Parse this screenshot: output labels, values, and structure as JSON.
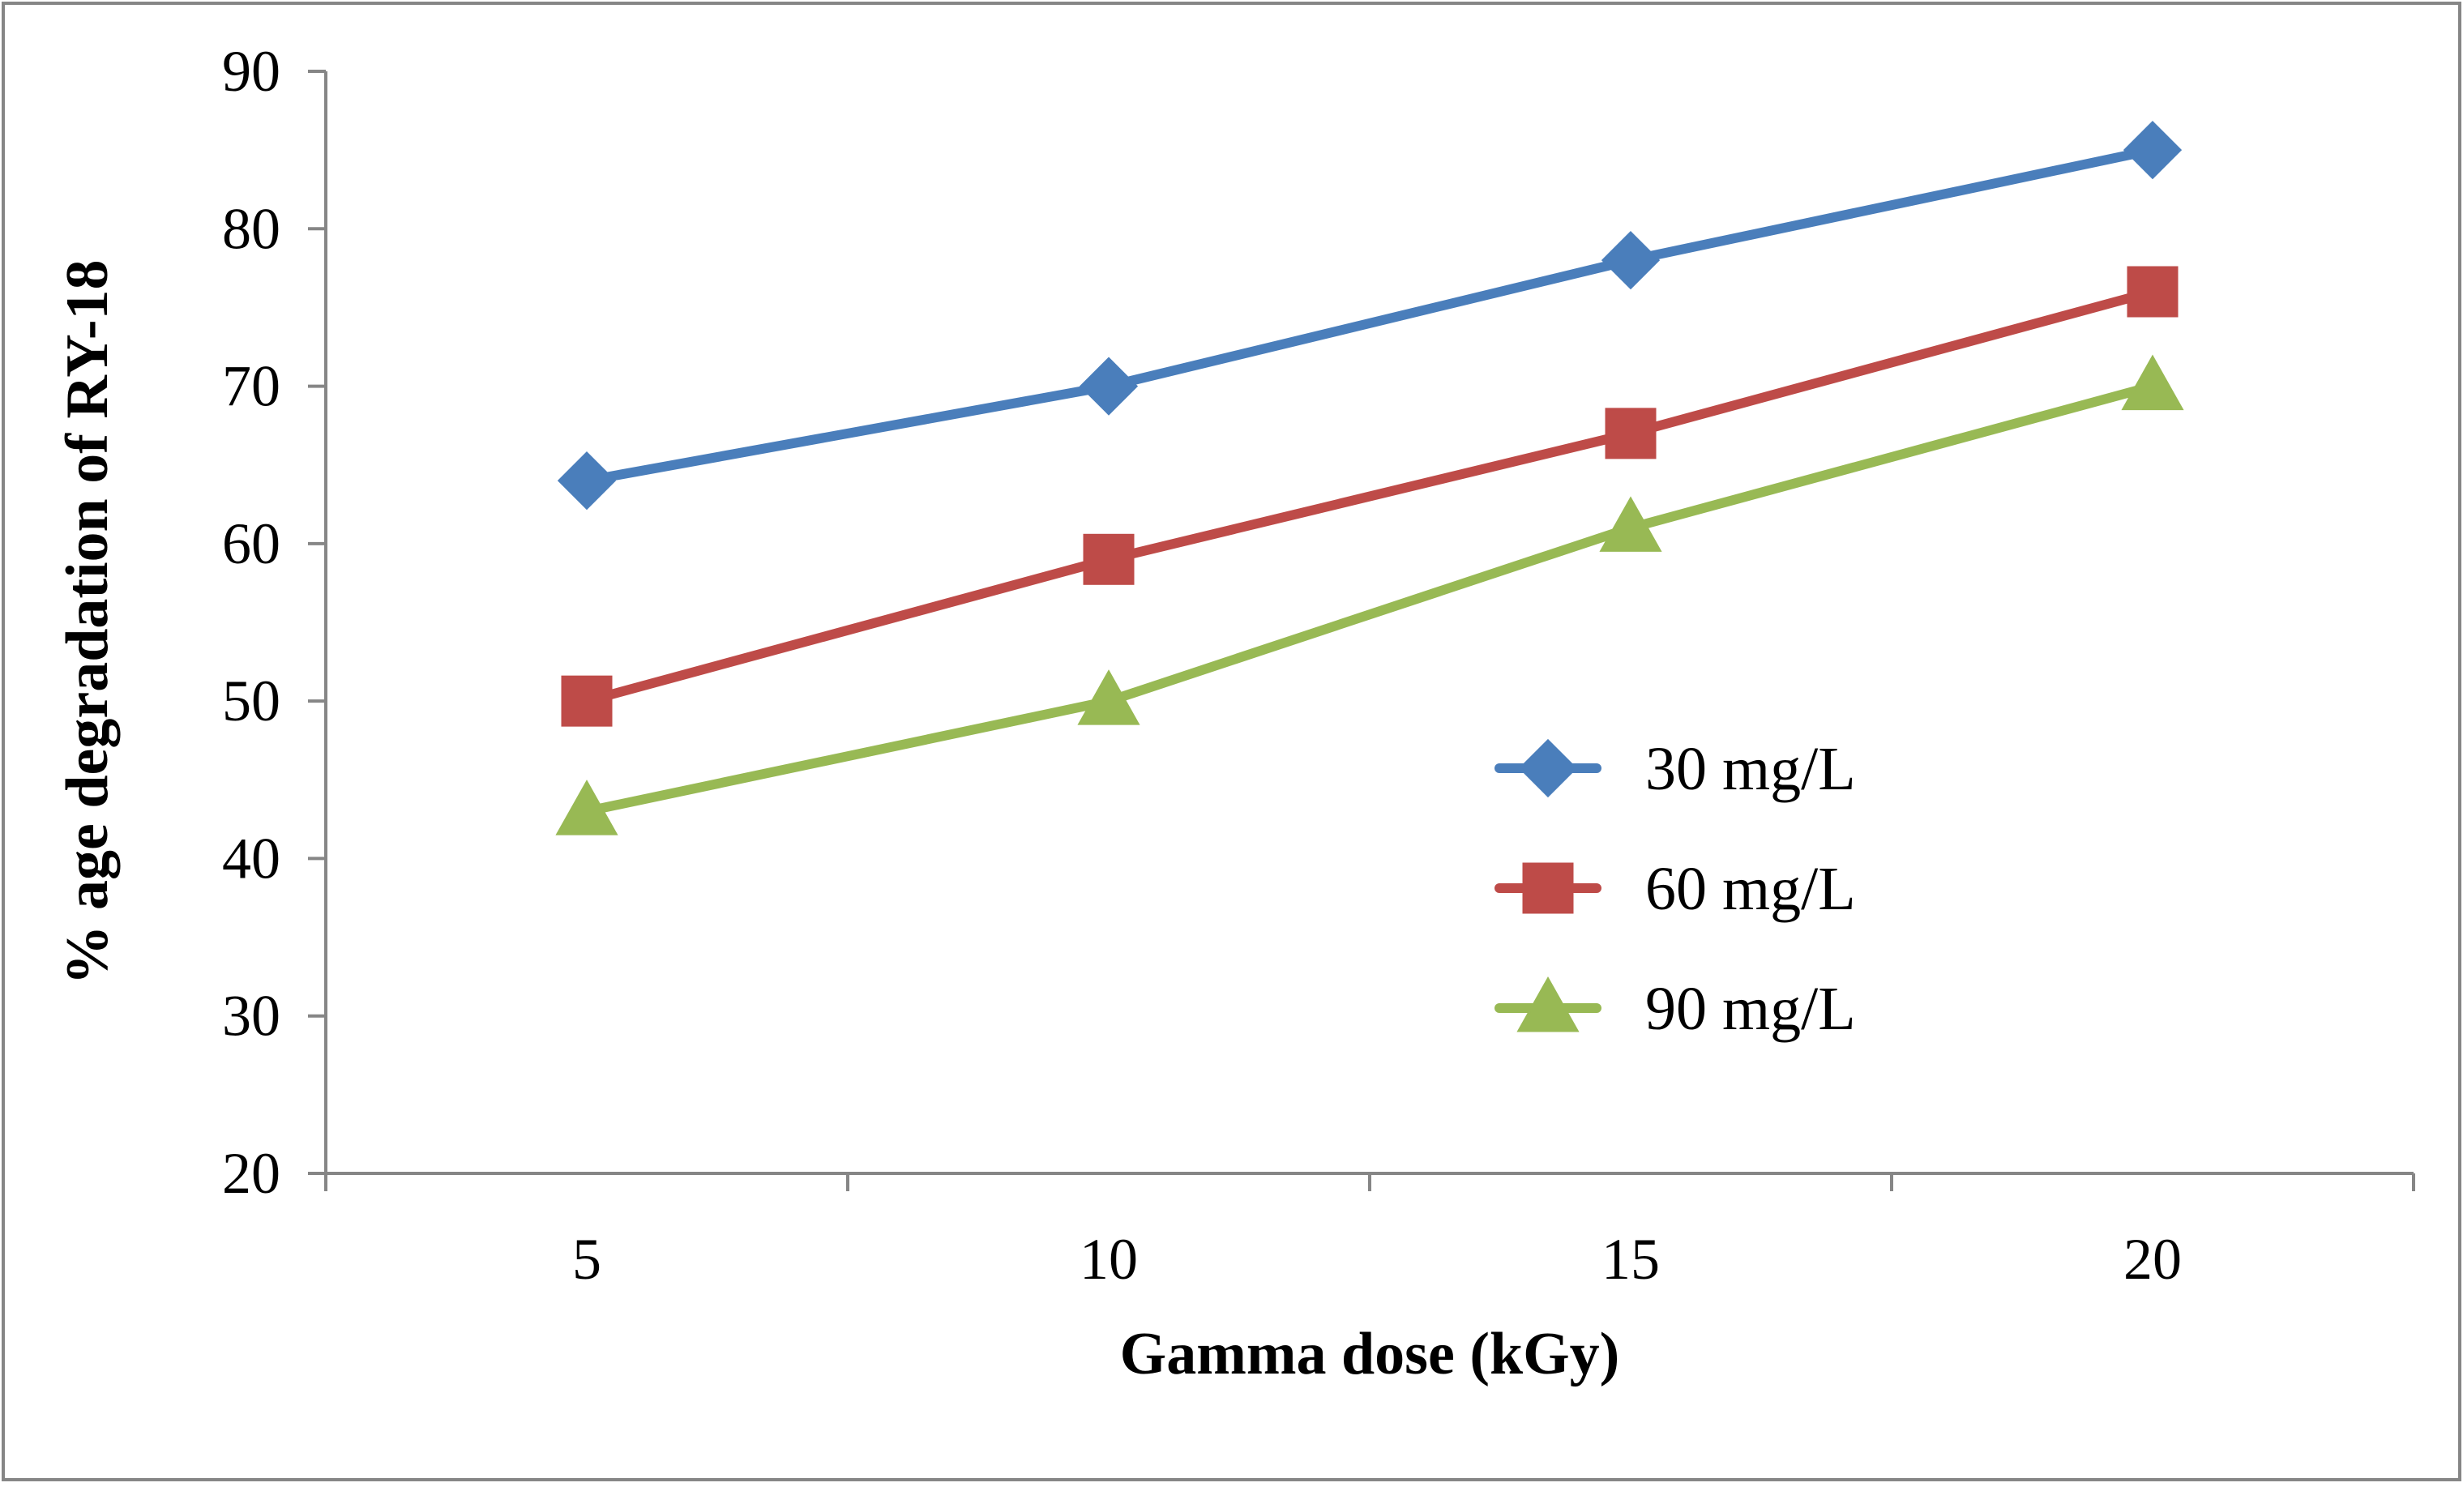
{
  "chart_data": {
    "type": "line",
    "title": "",
    "xlabel": "Gamma dose (kGy)",
    "ylabel": "% age degradation of RY-18",
    "categories": [
      "5",
      "10",
      "15",
      "20"
    ],
    "x": [
      5,
      10,
      15,
      20
    ],
    "ylim": [
      20,
      90
    ],
    "yticks": [
      20,
      30,
      40,
      50,
      60,
      70,
      80,
      90
    ],
    "ytick_labels": [
      "20",
      "30",
      "40",
      "50",
      "60",
      "70",
      "80",
      "90"
    ],
    "grid": false,
    "legend_position": "center-right",
    "series": [
      {
        "name": "30 mg/L",
        "values": [
          64,
          70,
          78,
          85
        ],
        "color": "#4A7EBB",
        "marker": "diamond"
      },
      {
        "name": "60 mg/L",
        "values": [
          50,
          59,
          67,
          76
        ],
        "color": "#BE4B48",
        "marker": "square"
      },
      {
        "name": "90 mg/L",
        "values": [
          43,
          50,
          61,
          70
        ],
        "color": "#98B954",
        "marker": "triangle"
      }
    ]
  }
}
